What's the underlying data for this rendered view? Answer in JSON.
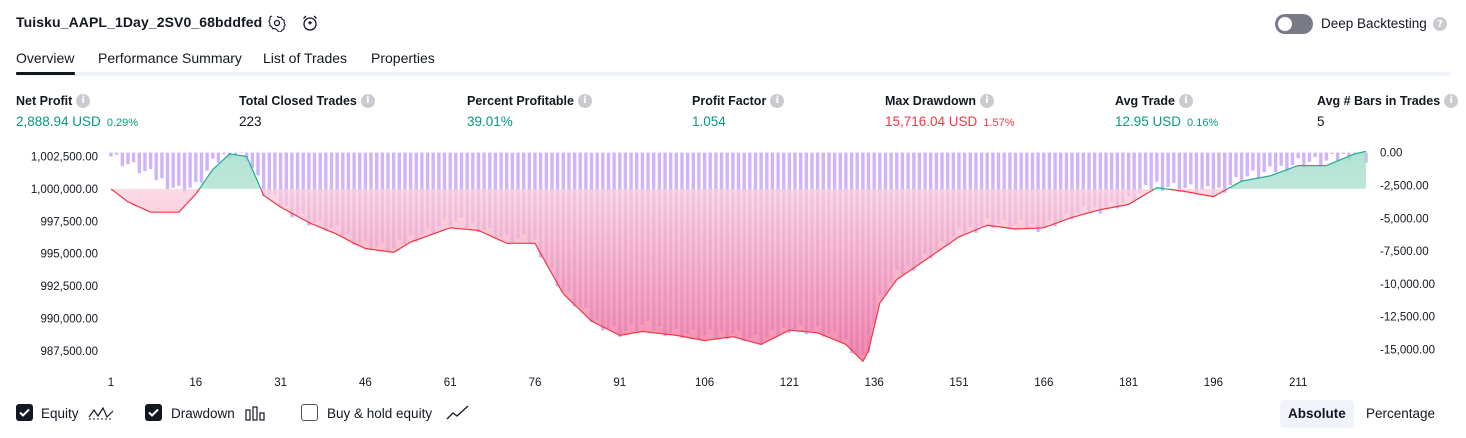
{
  "header": {
    "strategy_title": "Tuisku_AAPL_1Day_2SV0_68bddfed",
    "settings_icon": "gear-icon",
    "alert_icon": "alarm-add-icon",
    "deep_backtesting_label": "Deep Backtesting",
    "deep_backtesting_enabled": false,
    "help_icon": "help-icon"
  },
  "tabs": [
    {
      "label": "Overview",
      "active": true
    },
    {
      "label": "Performance Summary",
      "active": false
    },
    {
      "label": "List of Trades",
      "active": false
    },
    {
      "label": "Properties",
      "active": false
    }
  ],
  "metrics": [
    {
      "label": "Net Profit",
      "value": "2,888.94 USD",
      "pct": "0.29%",
      "color": "green"
    },
    {
      "label": "Total Closed Trades",
      "value": "223",
      "pct": "",
      "color": "dark"
    },
    {
      "label": "Percent Profitable",
      "value": "39.01%",
      "pct": "",
      "color": "green"
    },
    {
      "label": "Profit Factor",
      "value": "1.054",
      "pct": "",
      "color": "green"
    },
    {
      "label": "Max Drawdown",
      "value": "15,716.04 USD",
      "pct": "1.57%",
      "color": "red"
    },
    {
      "label": "Avg Trade",
      "value": "12.95 USD",
      "pct": "0.16%",
      "color": "green"
    },
    {
      "label": "Avg # Bars in Trades",
      "value": "5",
      "pct": "",
      "color": "dark"
    }
  ],
  "chart_data": {
    "type": "line",
    "x_ticks": [
      "1",
      "16",
      "31",
      "46",
      "61",
      "76",
      "91",
      "106",
      "121",
      "136",
      "151",
      "166",
      "181",
      "196",
      "211"
    ],
    "left_axis_ticks": [
      "1,002,500.00",
      "1,000,000.00",
      "997,500.00",
      "995,000.00",
      "992,500.00",
      "990,000.00",
      "987,500.00"
    ],
    "right_axis_ticks": [
      "0.00",
      "-2,500.00",
      "-5,000.00",
      "-7,500.00",
      "-10,000.00",
      "-12,500.00",
      "-15,000.00"
    ],
    "left_ylim": [
      986800,
      1003000
    ],
    "right_ylim": [
      -15800,
      200
    ],
    "initial_capital": 1000000,
    "x_range": [
      1,
      223
    ],
    "equity": {
      "x": [
        1,
        4,
        8,
        13,
        16,
        19,
        22,
        25,
        28,
        31,
        36,
        41,
        44,
        46,
        51,
        54,
        61,
        66,
        71,
        76,
        81,
        86,
        91,
        95,
        101,
        106,
        111,
        116,
        121,
        126,
        131,
        134,
        135,
        137,
        140,
        146,
        151,
        156,
        161,
        166,
        171,
        176,
        181,
        186,
        191,
        196,
        201,
        206,
        211,
        216,
        221,
        223
      ],
      "values": [
        1000000,
        999000,
        998200,
        998200,
        999600,
        1001500,
        1002700,
        1002500,
        999500,
        998600,
        997400,
        996500,
        995800,
        995400,
        995100,
        995900,
        997000,
        996800,
        995800,
        995800,
        991900,
        989800,
        988700,
        989000,
        988700,
        988300,
        988600,
        988000,
        989100,
        988900,
        988000,
        986700,
        987500,
        991200,
        993000,
        994800,
        996300,
        997200,
        996900,
        997000,
        997800,
        998400,
        998800,
        1000100,
        999800,
        999400,
        1000600,
        1001000,
        1001800,
        1001800,
        1002700,
        1002900
      ]
    },
    "drawdown": {
      "x": [
        1,
        4,
        8,
        13,
        16,
        19,
        22,
        25,
        28,
        31,
        36,
        41,
        44,
        46,
        51,
        54,
        61,
        66,
        71,
        76,
        81,
        86,
        91,
        95,
        101,
        106,
        111,
        116,
        121,
        126,
        131,
        134,
        135,
        137,
        140,
        146,
        151,
        156,
        161,
        166,
        171,
        176,
        181,
        186,
        191,
        196,
        201,
        206,
        211,
        216,
        221,
        223
      ],
      "values": [
        -200,
        -900,
        -1700,
        -2800,
        -2600,
        -900,
        0,
        -300,
        -3000,
        -4000,
        -5200,
        -6000,
        -6600,
        -7000,
        -7400,
        -6500,
        -5300,
        -5600,
        -6600,
        -6800,
        -10600,
        -12700,
        -13700,
        -13200,
        -13700,
        -14000,
        -13700,
        -14400,
        -13300,
        -13600,
        -14400,
        -15700,
        -14900,
        -11200,
        -9400,
        -7700,
        -6200,
        -5300,
        -5600,
        -5600,
        -4800,
        -4200,
        -3700,
        -2400,
        -2700,
        -3100,
        -1900,
        -1500,
        -700,
        -700,
        0,
        -400
      ]
    },
    "colors": {
      "equity_up": "#22ab94",
      "equity_down": "#f23645",
      "drawdown_bar": "#c9a7f7"
    }
  },
  "footer": {
    "checkboxes": [
      {
        "label": "Equity",
        "checked": true,
        "icon": "equity-line-icon"
      },
      {
        "label": "Drawdown",
        "checked": true,
        "icon": "drawdown-bars-icon"
      },
      {
        "label": "Buy & hold equity",
        "checked": false,
        "icon": "buy-hold-line-icon"
      }
    ],
    "mode_buttons": [
      {
        "label": "Absolute",
        "active": true
      },
      {
        "label": "Percentage",
        "active": false
      }
    ]
  }
}
